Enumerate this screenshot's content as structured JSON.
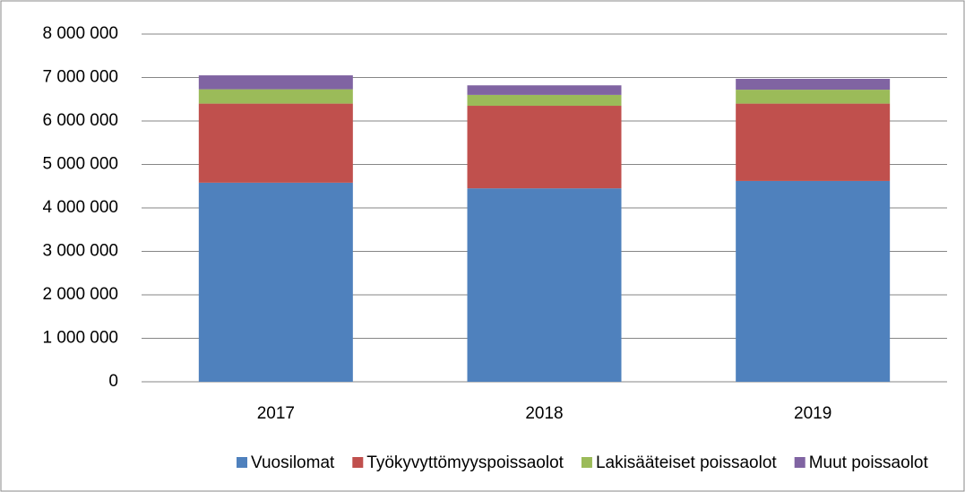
{
  "chart_data": {
    "type": "stacked_bar",
    "categories": [
      "2017",
      "2018",
      "2019"
    ],
    "series": [
      {
        "name": "Vuosilomat",
        "color": "#4f81bd",
        "values": [
          4580000,
          4450000,
          4620000
        ]
      },
      {
        "name": "Työkyvyttömyyspoissaolot",
        "color": "#c0504d",
        "values": [
          1820000,
          1900000,
          1780000
        ]
      },
      {
        "name": "Lakisääteiset poissaolot",
        "color": "#9bbb59",
        "values": [
          330000,
          250000,
          320000
        ]
      },
      {
        "name": "Muut poissaolot",
        "color": "#8064a2",
        "values": [
          320000,
          220000,
          250000
        ]
      }
    ],
    "ylim": [
      0,
      8000000
    ],
    "yticks": [
      0,
      {
        "value": 1000000,
        "label": "1 000 000"
      },
      {
        "value": 2000000,
        "label": "2 000 000"
      },
      {
        "value": 3000000,
        "label": "3 000 000"
      },
      {
        "value": 4000000,
        "label": "4 000 000"
      },
      {
        "value": 5000000,
        "label": "5 000 000"
      },
      {
        "value": 6000000,
        "label": "6 000 000"
      },
      {
        "value": 7000000,
        "label": "7 000 000"
      },
      {
        "value": 8000000,
        "label": "8 000 000"
      }
    ],
    "grid": true,
    "legend": "bottom"
  }
}
